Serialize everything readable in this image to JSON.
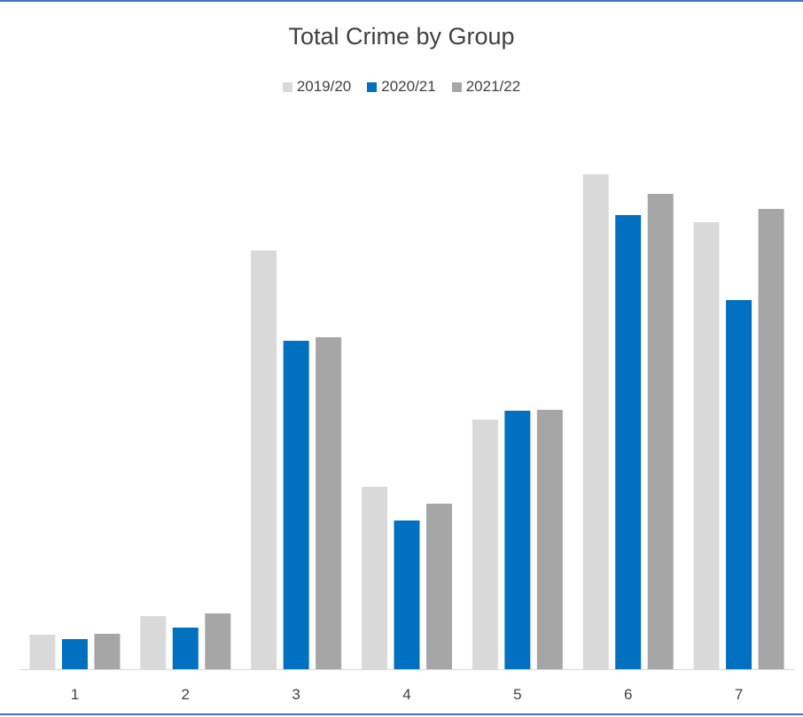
{
  "chart_data": {
    "type": "bar",
    "title": "Total Crime by Group",
    "categories": [
      "1",
      "2",
      "3",
      "4",
      "5",
      "6",
      "7"
    ],
    "series": [
      {
        "name": "2019/20",
        "color": "#d9d9d9",
        "values": [
          39,
          60,
          473,
          206,
          282,
          559,
          505
        ]
      },
      {
        "name": "2020/21",
        "color": "#0070c0",
        "values": [
          34,
          47,
          371,
          168,
          292,
          513,
          417
        ]
      },
      {
        "name": "2021/22",
        "color": "#a6a6a6",
        "values": [
          40,
          63,
          375,
          187,
          293,
          537,
          520
        ]
      }
    ],
    "ylim": [
      0,
      560
    ],
    "grid": false,
    "legend_position": "top-center"
  }
}
